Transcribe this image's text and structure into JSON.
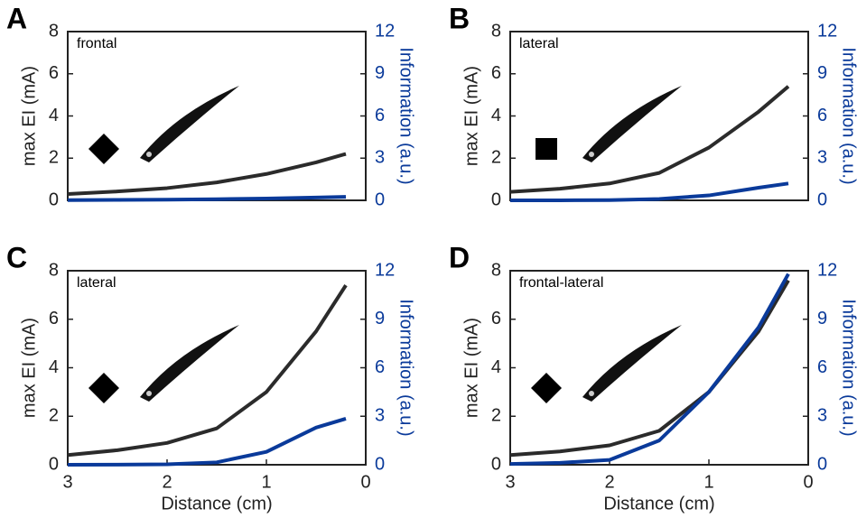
{
  "chart_data": [
    {
      "type": "line",
      "label": "A",
      "annotation": "frontal",
      "marker": "diamond",
      "ylabel": "max EI (mA)",
      "y2label": "Information (a.u.)",
      "xlim": [
        3,
        0
      ],
      "ylim": [
        0,
        8
      ],
      "yticks": [
        0,
        2,
        4,
        6,
        8
      ],
      "y2lim": [
        0,
        12
      ],
      "y2ticks": [
        0,
        3,
        6,
        9,
        12
      ],
      "x": [
        3,
        2.5,
        2,
        1.5,
        1,
        0.5,
        0.2
      ],
      "series": [
        {
          "color": "#2b2b2b",
          "values": [
            0.3,
            0.42,
            0.58,
            0.85,
            1.25,
            1.8,
            2.2
          ]
        },
        {
          "color": "#0a3a9a",
          "axis": "y2",
          "values": [
            0.02,
            0.03,
            0.05,
            0.08,
            0.13,
            0.2,
            0.25
          ]
        }
      ]
    },
    {
      "type": "line",
      "label": "B",
      "annotation": "lateral",
      "marker": "square",
      "ylabel": "max EI (mA)",
      "y2label": "Information (a.u.)",
      "xlim": [
        3,
        0
      ],
      "ylim": [
        0,
        8
      ],
      "yticks": [
        0,
        2,
        4,
        6,
        8
      ],
      "y2lim": [
        0,
        12
      ],
      "y2ticks": [
        0,
        3,
        6,
        9,
        12
      ],
      "x": [
        3,
        2.5,
        2,
        1.5,
        1,
        0.5,
        0.2
      ],
      "series": [
        {
          "color": "#2b2b2b",
          "values": [
            0.4,
            0.55,
            0.8,
            1.3,
            2.5,
            4.2,
            5.4
          ]
        },
        {
          "color": "#0a3a9a",
          "axis": "y2",
          "values": [
            0,
            0,
            0.02,
            0.1,
            0.35,
            0.9,
            1.2
          ]
        }
      ]
    },
    {
      "type": "line",
      "label": "C",
      "annotation": "lateral",
      "marker": "diamond",
      "ylabel": "max EI (mA)",
      "y2label": "Information (a.u.)",
      "xlabel": "Distance (cm)",
      "xlim": [
        3,
        0
      ],
      "xticks": [
        3,
        2,
        1,
        0
      ],
      "ylim": [
        0,
        8
      ],
      "yticks": [
        0,
        2,
        4,
        6,
        8
      ],
      "y2lim": [
        0,
        12
      ],
      "y2ticks": [
        0,
        3,
        6,
        9,
        12
      ],
      "x": [
        3,
        2.5,
        2,
        1.5,
        1,
        0.5,
        0.2
      ],
      "series": [
        {
          "color": "#2b2b2b",
          "values": [
            0.4,
            0.6,
            0.9,
            1.5,
            3.0,
            5.5,
            7.4
          ]
        },
        {
          "color": "#0a3a9a",
          "axis": "y2",
          "values": [
            0,
            0.01,
            0.03,
            0.15,
            0.8,
            2.3,
            2.85
          ]
        }
      ]
    },
    {
      "type": "line",
      "label": "D",
      "annotation": "frontal-lateral",
      "marker": "diamond",
      "ylabel": "max EI (mA)",
      "y2label": "Information (a.u.)",
      "xlabel": "Distance (cm)",
      "xlim": [
        3,
        0
      ],
      "xticks": [
        3,
        2,
        1,
        0
      ],
      "ylim": [
        0,
        8
      ],
      "yticks": [
        0,
        2,
        4,
        6,
        8
      ],
      "y2lim": [
        0,
        12
      ],
      "y2ticks": [
        0,
        3,
        6,
        9,
        12
      ],
      "x": [
        3,
        2.5,
        2,
        1.5,
        1,
        0.5,
        0.2
      ],
      "series": [
        {
          "color": "#2b2b2b",
          "values": [
            0.4,
            0.55,
            0.8,
            1.4,
            3.0,
            5.5,
            7.6
          ]
        },
        {
          "color": "#0a3a9a",
          "axis": "y2",
          "values": [
            0.05,
            0.12,
            0.3,
            1.5,
            4.5,
            8.5,
            11.8
          ]
        }
      ]
    }
  ]
}
